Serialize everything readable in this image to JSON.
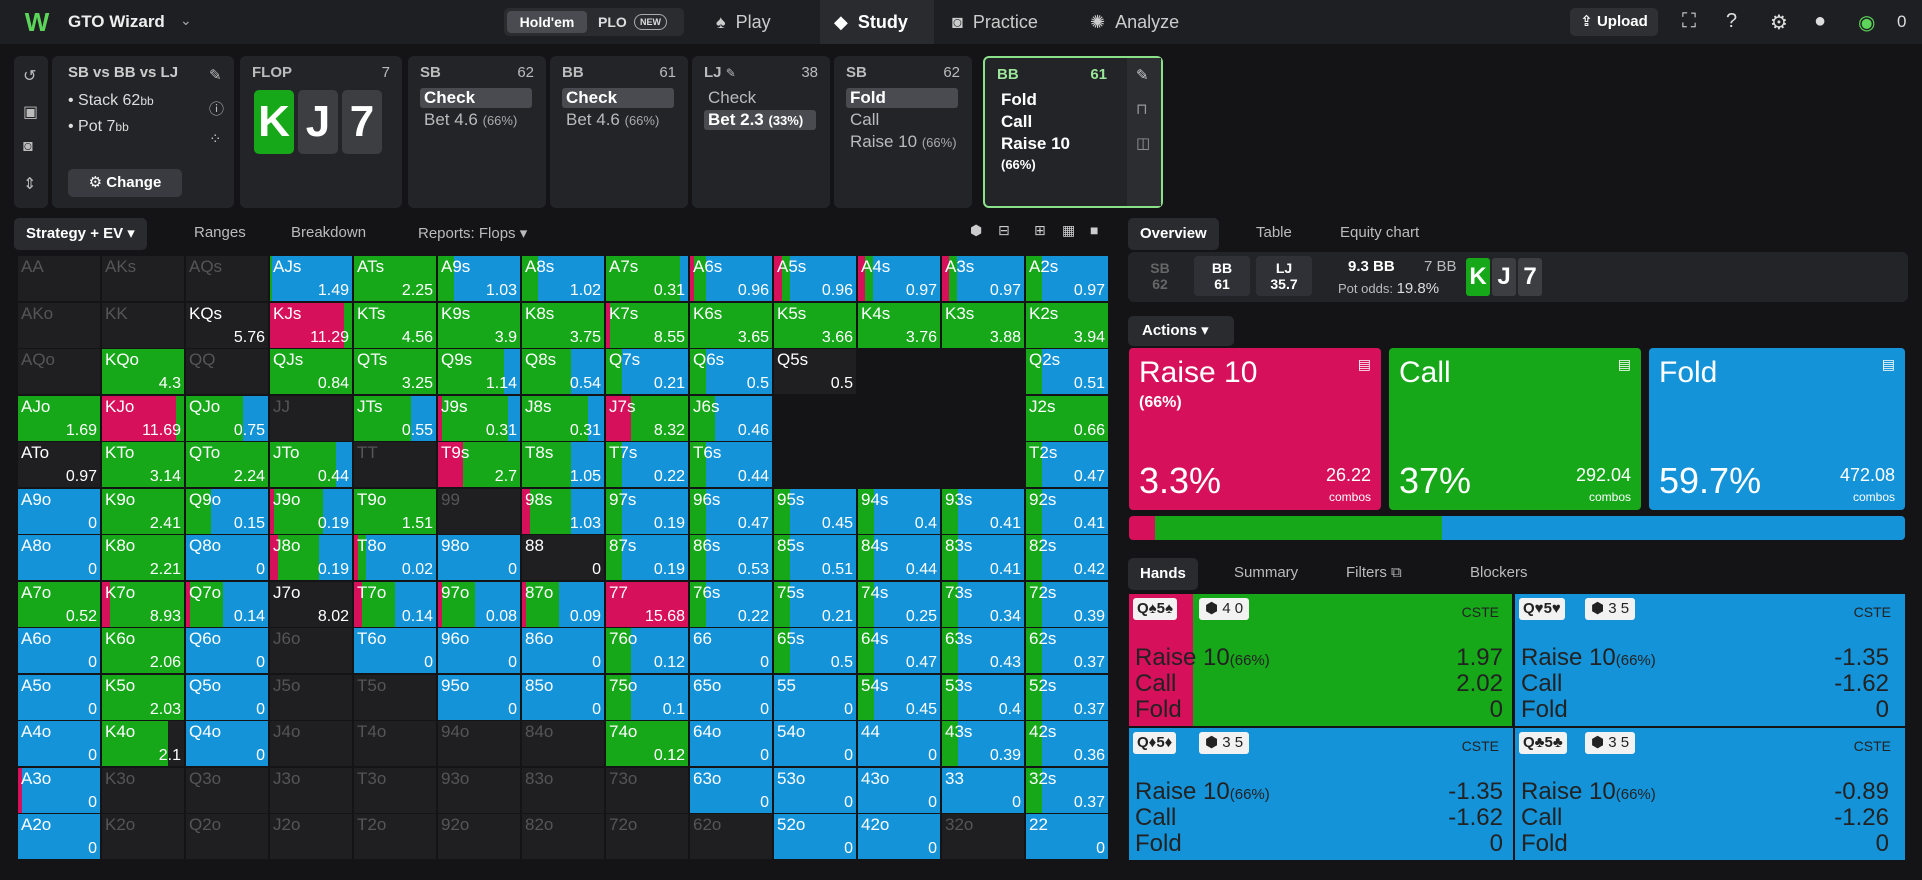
{
  "app": {
    "brand": "GTO Wizard",
    "logo": "W"
  },
  "gametype": {
    "selected": "Hold'em",
    "other": "PLO",
    "badge": "NEW"
  },
  "nav": [
    {
      "label": "Play",
      "icon": "♠"
    },
    {
      "label": "Study",
      "icon": "◆"
    },
    {
      "label": "Practice",
      "icon": "◙"
    },
    {
      "label": "Analyze",
      "icon": "✺"
    }
  ],
  "top_right": {
    "upload": "Upload",
    "coins": "0"
  },
  "spot": {
    "title": "SB vs BB vs LJ",
    "stack": "Stack 62",
    "stack_unit": "bb",
    "pot": "Pot 7",
    "pot_unit": "bb",
    "change": "Change"
  },
  "flop": {
    "label": "FLOP",
    "number": "7",
    "cards": [
      "K",
      "J",
      "7"
    ]
  },
  "actions_history": [
    {
      "pos": "SB",
      "num": "62",
      "opts": [
        {
          "t": "Check",
          "sel": true
        },
        {
          "t": "Bet 4.6",
          "pc": "(66%)"
        }
      ]
    },
    {
      "pos": "BB",
      "num": "61",
      "opts": [
        {
          "t": "Check",
          "sel": true
        },
        {
          "t": "Bet 4.6",
          "pc": "(66%)"
        }
      ]
    },
    {
      "pos": "LJ",
      "num": "38",
      "opts": [
        {
          "t": "Check"
        },
        {
          "t": "Bet 2.3",
          "pc": "(33%)",
          "sel": true
        }
      ]
    },
    {
      "pos": "SB",
      "num": "62",
      "opts": [
        {
          "t": "Fold",
          "sel": true
        },
        {
          "t": "Call"
        },
        {
          "t": "Raise 10",
          "pc": "(66%)"
        }
      ]
    },
    {
      "pos": "BB",
      "num": "61",
      "opts": [
        {
          "t": "Fold"
        },
        {
          "t": "Call"
        },
        {
          "t": "Raise 10",
          "pc": "(66%)"
        }
      ]
    }
  ],
  "grid_tabs": {
    "strategy": "Strategy + EV",
    "ranges": "Ranges",
    "breakdown": "Breakdown",
    "reports": "Reports: Flops"
  },
  "right_tabs": {
    "overview": "Overview",
    "table": "Table",
    "equity": "Equity chart"
  },
  "summary": {
    "sb": "SB",
    "sb_n": "62",
    "bb": "BB",
    "bb_n": "61",
    "lj": "LJ",
    "lj_n": "35.7",
    "pot": "9.3 BB",
    "bet": "7 BB",
    "odds_label": "Pot odds:",
    "odds": "19.8%",
    "cards": [
      "K",
      "J",
      "7"
    ]
  },
  "actions_label": "Actions",
  "action_boxes": [
    {
      "title": "Raise 10",
      "sub": "(66%)",
      "pct": "3.3%",
      "combos": "26.22",
      "combo_label": "combos",
      "color": "#d6105a"
    },
    {
      "title": "Call",
      "sub": "",
      "pct": "37%",
      "combos": "292.04",
      "combo_label": "combos",
      "color": "#16a819"
    },
    {
      "title": "Fold",
      "sub": "",
      "pct": "59.7%",
      "combos": "472.08",
      "combo_label": "combos",
      "color": "#1493d9"
    }
  ],
  "freq": [
    0.033,
    0.37,
    0.597
  ],
  "hand_tabs": {
    "hands": "Hands",
    "summary": "Summary",
    "filters": "Filters",
    "blockers": "Blockers"
  },
  "hand_cards": [
    {
      "combo": "Q♠5♠",
      "blockers": "4 0",
      "cste": "CSTE",
      "raise": "1.97",
      "call": "2.02",
      "fold": "0",
      "freq": [
        0.17,
        0.83,
        0
      ]
    },
    {
      "combo": "Q♥5♥",
      "blockers": "3 5",
      "cste": "CSTE",
      "raise": "-1.35",
      "call": "-1.62",
      "fold": "0",
      "freq": [
        0,
        0,
        1
      ]
    },
    {
      "combo": "Q♦5♦",
      "blockers": "3 5",
      "cste": "CSTE",
      "raise": "-1.35",
      "call": "-1.62",
      "fold": "0",
      "freq": [
        0,
        0,
        1
      ]
    },
    {
      "combo": "Q♣5♣",
      "blockers": "3 5",
      "cste": "CSTE",
      "raise": "-0.89",
      "call": "-1.26",
      "fold": "0",
      "freq": [
        0,
        0,
        1
      ]
    }
  ],
  "hand_rows": {
    "raise": "Raise 10",
    "raise_pc": "(66%)",
    "call": "Call",
    "fold": "Fold"
  },
  "colors": {
    "raise": "#d6105a",
    "call": "#16a819",
    "fold": "#1493d9"
  },
  "grid": [
    [
      "AA|e",
      "AKs|e",
      "AQs|e",
      "AJs|1.49|0,0.02,0.98",
      "ATs|2.25|0,1,0",
      "A9s|1.03|0,0.2,0.8",
      "A8s|1.02|0,0.2,0.8",
      "A7s|0.31|0,0.9,0.1",
      "A6s|0.96|0.05,0.15,0.8",
      "A5s|0.96|0.1,0.1,0.8",
      "A4s|0.97|0.08,0.1,0.82",
      "A3s|0.97|0.08,0.1,0.82",
      "A2s|0.97|0,0.2,0.8"
    ],
    [
      "AKo|e",
      "KK|e",
      "KQs|5.76|0,0,0",
      "KJs|11.29|0.9,0.1,0",
      "KTs|4.56|0,1,0",
      "K9s|3.9|0,1,0",
      "K8s|3.75|0,1,0",
      "K7s|8.55|0.05,0.95,0",
      "K6s|3.65|0,1,0",
      "K5s|3.66|0,1,0",
      "K4s|3.76|0,1,0",
      "K3s|3.88|0,1,0",
      "K2s|3.94|0,1,0"
    ],
    [
      "AQo|e",
      "KQo|4.3|0,1,0",
      "QQ|e",
      "QJs|0.84|0,1,0",
      "QTs|3.25|0,1,0",
      "Q9s|1.14|0,0.8,0.2",
      "Q8s|0.54|0,0.6,0.4",
      "Q7s|0.21|0,0.2,0.8",
      "Q6s|0.5|0,0.2,0.8",
      "Q5s|0.5|z",
      "",
      "",
      "Q2s|0.51|0,0.2,0.8"
    ],
    [
      "AJo|1.69|0,1,0",
      "KJo|11.69|0.9,0.1,0",
      "QJo|0.75|0,0.7,0.3",
      "JJ|e",
      "JTs|0.55|0,0.7,0.3",
      "J9s|0.31|0.05,0.8,0.15",
      "J8s|0.31|0,0.8,0.2",
      "J7s|8.32|0.3,0.7,0",
      "J6s|0.46|0,0.3,0.7",
      "",
      "",
      "",
      "J2s|0.66|0,1,0"
    ],
    [
      "ATo|0.97|0,0,0",
      "KTo|3.14|0,1,0",
      "QTo|2.24|0,1,0",
      "JTo|0.44|0,0.8,0.2",
      "TT|e",
      "T9s|2.7|0.3,0.7,0",
      "T8s|1.05|0,0.6,0.4",
      "T7s|0.22|0,0.2,0.8",
      "T6s|0.44|0,0.2,0.8",
      "",
      "",
      "",
      "T2s|0.47|0,0.2,0.8"
    ],
    [
      "A9o|0|0,0,1",
      "K9o|2.41|0,1,0",
      "Q9o|0.15|0,0.3,0.7",
      "J9o|0.19|0.05,0.6,0.35",
      "T9o|1.51|0,1,0",
      "99|e",
      "98s|1.03|0.1,0.5,0.4",
      "97s|0.19|0,0.2,0.8",
      "96s|0.47|0,0.2,0.8",
      "95s|0.45|0,0.2,0.8",
      "94s|0.4|0,0.2,0.8",
      "93s|0.41|0,0.2,0.8",
      "92s|0.41|0,0.2,0.8"
    ],
    [
      "A8o|0|0,0,1",
      "K8o|2.21|0,1,0",
      "Q8o|0|0,0,1",
      "J8o|0.19|0.1,0.5,0.4",
      "T8o|0.02|0.05,0.1,0.85",
      "98o|0|0,0,1",
      "88|0|0,0,0",
      "87s|0.19|0,0.2,0.8",
      "86s|0.53|0,0.2,0.8",
      "85s|0.51|0,0.2,0.8",
      "84s|0.44|0,0.2,0.8",
      "83s|0.41|0,0.2,0.8",
      "82s|0.42|0,0.2,0.8"
    ],
    [
      "A7o|0.52|0,1,0",
      "K7o|8.93|0.1,0.9,0",
      "Q7o|0.14|0.05,0.4,0.55",
      "J7o|8.02|0,0,0",
      "T7o|0.14|0.1,0.4,0.5",
      "97o|0.08|0.05,0.4,0.55",
      "87o|0.09|0.05,0.4,0.55",
      "77|15.68|1,0,0",
      "76s|0.22|0,0.2,0.8",
      "75s|0.21|0,0.2,0.8",
      "74s|0.25|0,0.2,0.8",
      "73s|0.34|0,0.2,0.8",
      "72s|0.39|0,0.2,0.8"
    ],
    [
      "A6o|0|0,0,1",
      "K6o|2.06|0,1,0",
      "Q6o|0|0,0,1",
      "J6o|e",
      "T6o|0|0,0,1",
      "96o|0|0,0,1",
      "86o|0|0,0,1",
      "76o|0.12|0,0.3,0.7",
      "66|0|0,0,1",
      "65s|0.5|0,0.2,0.8",
      "64s|0.47|0,0.2,0.8",
      "63s|0.43|0,0.2,0.8",
      "62s|0.37|0,0.2,0.8"
    ],
    [
      "A5o|0|0,0,1",
      "K5o|2.03|0,1,0",
      "Q5o|0|0,0,1",
      "J5o|e",
      "T5o|e",
      "95o|0|0,0,1",
      "85o|0|0,0,1",
      "75o|0.1|0,0.3,0.7",
      "65o|0|0,0,1",
      "55|0|0,0,1",
      "54s|0.45|0,0.2,0.8",
      "53s|0.4|0,0.2,0.8",
      "52s|0.37|0,0.2,0.8"
    ],
    [
      "A4o|0|0,0,1",
      "K4o|2.1|0,0.8,0",
      "Q4o|0|0,0,1",
      "J4o|e",
      "T4o|e",
      "94o|e",
      "84o|e",
      "74o|0.12|0,1,0",
      "64o|0|0,0,1",
      "54o|0|0,0,1",
      "44|0|0,0,1",
      "43s|0.39|0,0.2,0.8",
      "42s|0.36|0,0.2,0.8"
    ],
    [
      "A3o|0|0.05,0,0.95",
      "K3o|e",
      "Q3o|e",
      "J3o|e",
      "T3o|e",
      "93o|e",
      "83o|e",
      "73o|e",
      "63o|0|0,0,1",
      "53o|0|0,0,1",
      "43o|0|0,0,1",
      "33|0|0,0,1",
      "32s|0.37|0,0.2,0.8"
    ],
    [
      "A2o|0|0,0,1",
      "K2o|e",
      "Q2o|e",
      "J2o|e",
      "T2o|e",
      "92o|e",
      "82o|e",
      "72o|e",
      "62o|e",
      "52o|0|0,0,1",
      "42o|0|0,0,1",
      "32o|e",
      "22|0|0,0,1"
    ]
  ],
  "zoom": {
    "name": "Q5s",
    "ev": "0.5",
    "freq": [
      0.04,
      0.21,
      0.75
    ]
  }
}
